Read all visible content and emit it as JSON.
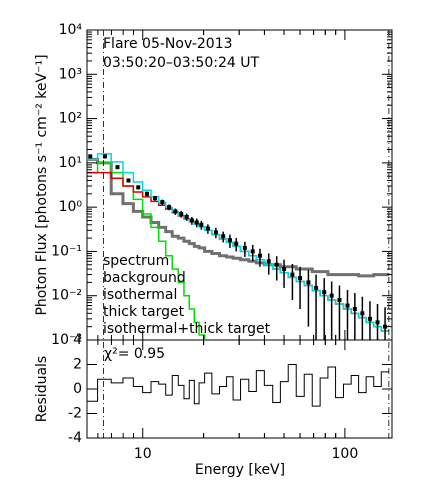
{
  "chart_data": {
    "type": "spectrum",
    "title": "Flare 05-Nov-2013",
    "subtitle": "03:50:20–03:50:24 UT",
    "ylabel": "Photon Flux [photons s⁻¹ cm⁻² keV⁻¹]",
    "xlabel": "Energy [keV]",
    "residual_label": "Residuals",
    "chi2_label": "χ²= 0.95",
    "log_x": true,
    "log_y": true,
    "xlim": [
      5.3,
      171
    ],
    "ylim": [
      0.001,
      10000
    ],
    "xticks": [
      10,
      100
    ],
    "yticks": [
      {
        "value": 0.001,
        "label": "10⁻³"
      },
      {
        "value": 0.01,
        "label": "10⁻²"
      },
      {
        "value": 0.1,
        "label": "10⁻¹"
      },
      {
        "value": 1,
        "label": "10⁰"
      },
      {
        "value": 10,
        "label": "10¹"
      },
      {
        "value": 100,
        "label": "10²"
      },
      {
        "value": 1000,
        "label": "10³"
      },
      {
        "value": 10000,
        "label": "10⁴"
      }
    ],
    "fit_range": [
      6.4,
      165
    ],
    "x": [
      5.5,
      6.5,
      7.5,
      8.5,
      9.5,
      10.5,
      11.5,
      12.5,
      13.5,
      14.5,
      15.5,
      16.5,
      17.5,
      18.5,
      19.5,
      21,
      23,
      25,
      27,
      29,
      32,
      35,
      38,
      42,
      46,
      50,
      55,
      60,
      66,
      72,
      79,
      86,
      94,
      103,
      112,
      122,
      133,
      145,
      158
    ],
    "series": [
      {
        "name": "spectrum",
        "color": "#000000",
        "style": "points",
        "values": [
          14,
          14,
          8,
          4,
          2.8,
          2,
          1.6,
          1.3,
          1.0,
          0.8,
          0.7,
          0.6,
          0.5,
          0.45,
          0.4,
          0.33,
          0.27,
          0.22,
          0.18,
          0.15,
          0.12,
          0.1,
          0.08,
          0.06,
          0.05,
          0.04,
          0.03,
          0.025,
          0.02,
          0.015,
          0.012,
          0.01,
          0.008,
          0.006,
          0.005,
          0.004,
          0.003,
          0.0025,
          0.002
        ],
        "errors": [
          1.5,
          1.5,
          0.8,
          0.4,
          0.3,
          0.25,
          0.2,
          0.18,
          0.15,
          0.13,
          0.12,
          0.11,
          0.1,
          0.1,
          0.09,
          0.08,
          0.07,
          0.06,
          0.06,
          0.05,
          0.045,
          0.04,
          0.035,
          0.03,
          0.028,
          0.025,
          0.022,
          0.02,
          0.018,
          0.015,
          0.013,
          0.011,
          0.009,
          0.0075,
          0.0065,
          0.0055,
          0.0045,
          0.004,
          0.0035
        ]
      },
      {
        "name": "background",
        "color": "#707070",
        "style": "step",
        "values": [
          12,
          10,
          2,
          1.2,
          0.8,
          0.6,
          0.45,
          0.35,
          0.28,
          0.22,
          0.2,
          0.17,
          0.15,
          0.13,
          0.12,
          0.1,
          0.09,
          0.08,
          0.075,
          0.07,
          0.065,
          0.06,
          0.055,
          0.05,
          0.05,
          0.045,
          0.045,
          0.04,
          0.04,
          0.035,
          0.035,
          0.03,
          0.03,
          0.03,
          0.03,
          0.028,
          0.028,
          0.03,
          0.03
        ]
      },
      {
        "name": "isothermal",
        "color": "#00e000",
        "style": "step",
        "values": [
          6,
          10,
          6,
          3,
          1.5,
          0.7,
          0.35,
          0.17,
          0.08,
          0.04,
          0.02,
          0.01,
          0.005,
          0.0025,
          0.0013,
          0.0006,
          null,
          null,
          null,
          null,
          null,
          null,
          null,
          null,
          null,
          null,
          null,
          null,
          null,
          null,
          null,
          null,
          null,
          null,
          null,
          null,
          null,
          null,
          null
        ]
      },
      {
        "name": "thick target",
        "color": "#e00000",
        "style": "step",
        "values": [
          6,
          6,
          4.5,
          3,
          2.2,
          1.7,
          1.35,
          1.1,
          0.9,
          0.75,
          0.63,
          0.54,
          0.47,
          0.41,
          0.36,
          0.3,
          0.24,
          0.19,
          0.16,
          0.13,
          0.1,
          0.08,
          0.065,
          0.05,
          0.04,
          0.033,
          0.026,
          0.021,
          0.017,
          0.013,
          0.01,
          0.008,
          0.0065,
          0.005,
          0.004,
          0.0032,
          0.0025,
          0.002,
          0.0016
        ]
      },
      {
        "name": "isothermal+thick target",
        "color": "#00d8e0",
        "style": "step",
        "values": [
          12,
          16,
          10.5,
          6,
          3.7,
          2.4,
          1.7,
          1.27,
          0.98,
          0.79,
          0.65,
          0.55,
          0.475,
          0.41,
          0.36,
          0.3,
          0.24,
          0.19,
          0.16,
          0.13,
          0.1,
          0.08,
          0.065,
          0.05,
          0.04,
          0.033,
          0.026,
          0.021,
          0.017,
          0.013,
          0.01,
          0.008,
          0.0065,
          0.005,
          0.004,
          0.0032,
          0.0025,
          0.002,
          0.0016
        ]
      }
    ],
    "residuals": [
      -1,
      0.8,
      0.5,
      0.9,
      0.2,
      -0.3,
      0.6,
      0.4,
      -0.5,
      1.1,
      0.3,
      -0.8,
      0.7,
      -1.2,
      0.5,
      1.3,
      -0.4,
      0.2,
      1.0,
      -0.9,
      0.8,
      -0.2,
      1.5,
      0.3,
      -1.1,
      0.6,
      2.0,
      -0.6,
      1.2,
      -1.4,
      0.9,
      1.8,
      -0.7,
      0.4,
      1.1,
      -0.3,
      1.0,
      0.2,
      1.4
    ],
    "rlim": [
      -4,
      4
    ],
    "rticks": [
      -4,
      -2,
      0,
      2,
      4
    ]
  }
}
